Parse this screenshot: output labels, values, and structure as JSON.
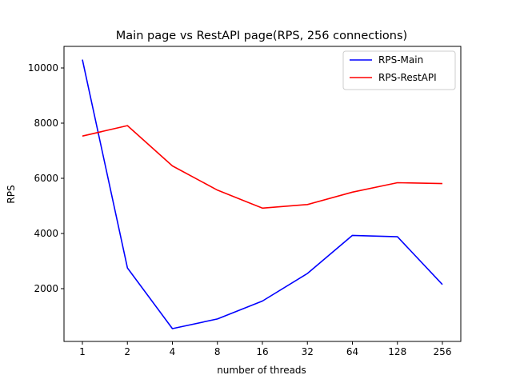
{
  "chart_data": {
    "type": "line",
    "title": "Main page vs RestAPI page(RPS, 256 connections)",
    "xlabel": "number of threads",
    "ylabel": "RPS",
    "categories": [
      "1",
      "2",
      "4",
      "8",
      "16",
      "32",
      "64",
      "128",
      "256"
    ],
    "y_ticks": [
      2000,
      4000,
      6000,
      8000,
      10000
    ],
    "ylim": [
      0,
      10800
    ],
    "grid": false,
    "legend_position": "top-right",
    "series": [
      {
        "name": "RPS-Main",
        "color": "#0000ff",
        "values": [
          10300,
          2750,
          550,
          900,
          1550,
          2550,
          3930,
          3880,
          2150
        ]
      },
      {
        "name": "RPS-RestAPI",
        "color": "#ff0000",
        "values": [
          7530,
          7910,
          6450,
          5570,
          4920,
          5050,
          5500,
          5840,
          5810
        ]
      }
    ]
  }
}
